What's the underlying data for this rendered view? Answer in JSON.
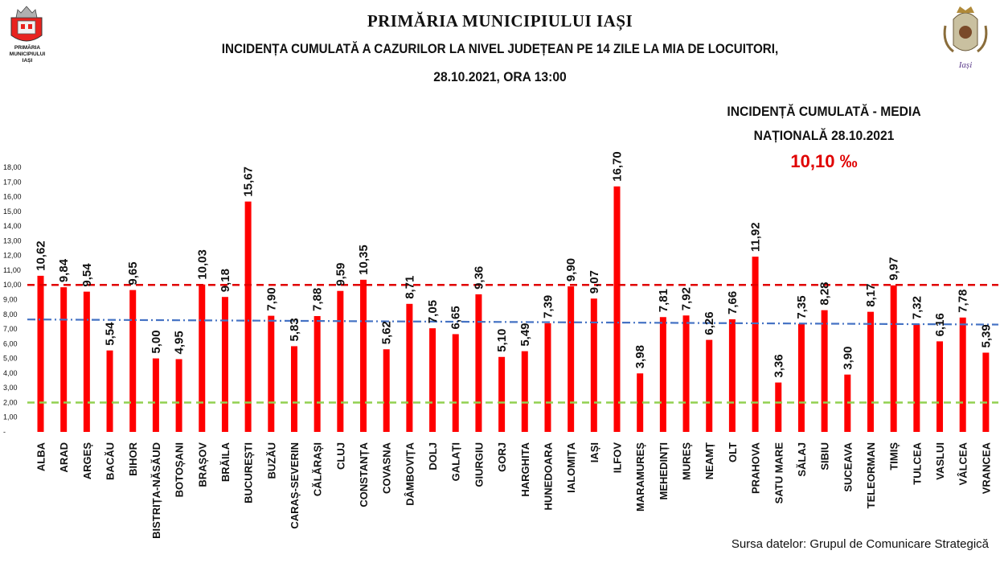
{
  "header": {
    "title": "PRIMĂRIA MUNICIPIULUI IAȘI",
    "subtitle": "INCIDENȚA CUMULATĂ A CAZURILOR LA NIVEL JUDEȚEAN PE 14 ZILE LA MIA DE LOCUITORI,",
    "date": "28.10.2021, ORA 13:00"
  },
  "logo": {
    "line1": "PRIMĂRIA",
    "line2": "MUNICIPIULUI",
    "line3": "IAȘI",
    "right_text": "Iași"
  },
  "incidence": {
    "label_line1": "INCIDENȚĂ CUMULATĂ - MEDIA",
    "label_line2": "NAȚIONALĂ 28.10.2021",
    "value": "10,10 ‰"
  },
  "source": "Sursa datelor: Grupul de Comunicare Strategică",
  "colors": {
    "bar": "#ff0000",
    "red_line": "#e00000",
    "blue_line": "#4472c4",
    "green_line": "#92d050"
  },
  "chart_data": {
    "type": "bar",
    "categories": [
      "ALBA",
      "ARAD",
      "ARGEȘ",
      "BACĂU",
      "BIHOR",
      "BISTRIȚA-NĂSĂUD",
      "BOTOȘANI",
      "BRAȘOV",
      "BRĂILA",
      "BUCUREȘTI",
      "BUZĂU",
      "CARAȘ-SEVERIN",
      "CĂLĂRAȘI",
      "CLUJ",
      "CONSTANȚA",
      "COVASNA",
      "DÂMBOVIȚA",
      "DOLJ",
      "GALAȚI",
      "GIURGIU",
      "GORJ",
      "HARGHITA",
      "HUNEDOARA",
      "IALOMIȚA",
      "IAȘI",
      "ILFOV",
      "MARAMUREȘ",
      "MEHEDINȚI",
      "MUREȘ",
      "NEAMȚ",
      "OLT",
      "PRAHOVA",
      "SATU MARE",
      "SĂLAJ",
      "SIBIU",
      "SUCEAVA",
      "TELEORMAN",
      "TIMIȘ",
      "TULCEA",
      "VASLUI",
      "VÂLCEA",
      "VRANCEA"
    ],
    "values": [
      10.62,
      9.84,
      9.54,
      5.54,
      9.65,
      5.0,
      4.95,
      10.03,
      9.18,
      15.67,
      7.9,
      5.83,
      7.88,
      9.59,
      10.35,
      5.62,
      8.71,
      7.05,
      6.65,
      9.36,
      5.1,
      5.49,
      7.39,
      9.9,
      9.07,
      16.7,
      3.98,
      7.81,
      7.92,
      6.26,
      7.66,
      11.92,
      3.36,
      7.35,
      8.28,
      3.9,
      8.17,
      9.97,
      7.32,
      6.16,
      7.78,
      5.39
    ],
    "value_labels": [
      "10,62",
      "9,84",
      "9,54",
      "5,54",
      "9,65",
      "5,00",
      "4,95",
      "10,03",
      "9,18",
      "15,67",
      "7,90",
      "5,83",
      "7,88",
      "9,59",
      "10,35",
      "5,62",
      "8,71",
      "7,05",
      "6,65",
      "9,36",
      "5,10",
      "5,49",
      "7,39",
      "9,90",
      "9,07",
      "16,70",
      "3,98",
      "7,81",
      "7,92",
      "6,26",
      "7,66",
      "11,92",
      "3,36",
      "7,35",
      "8,28",
      "3,90",
      "8,17",
      "9,97",
      "7,32",
      "6,16",
      "7,78",
      "5,39"
    ],
    "y_ticks": [
      "-",
      "1,00",
      "2,00",
      "3,00",
      "4,00",
      "5,00",
      "6,00",
      "7,00",
      "8,00",
      "9,00",
      "10,00",
      "11,00",
      "12,00",
      "13,00",
      "14,00",
      "15,00",
      "16,00",
      "17,00",
      "18,00"
    ],
    "ylim": [
      0,
      18
    ],
    "reference_lines": [
      {
        "y": 10.0,
        "style": "red dashed"
      },
      {
        "y_start": 7.65,
        "y_end": 7.3,
        "style": "blue dash-dot"
      },
      {
        "y": 2.0,
        "style": "green dashed"
      }
    ],
    "grid": false
  }
}
